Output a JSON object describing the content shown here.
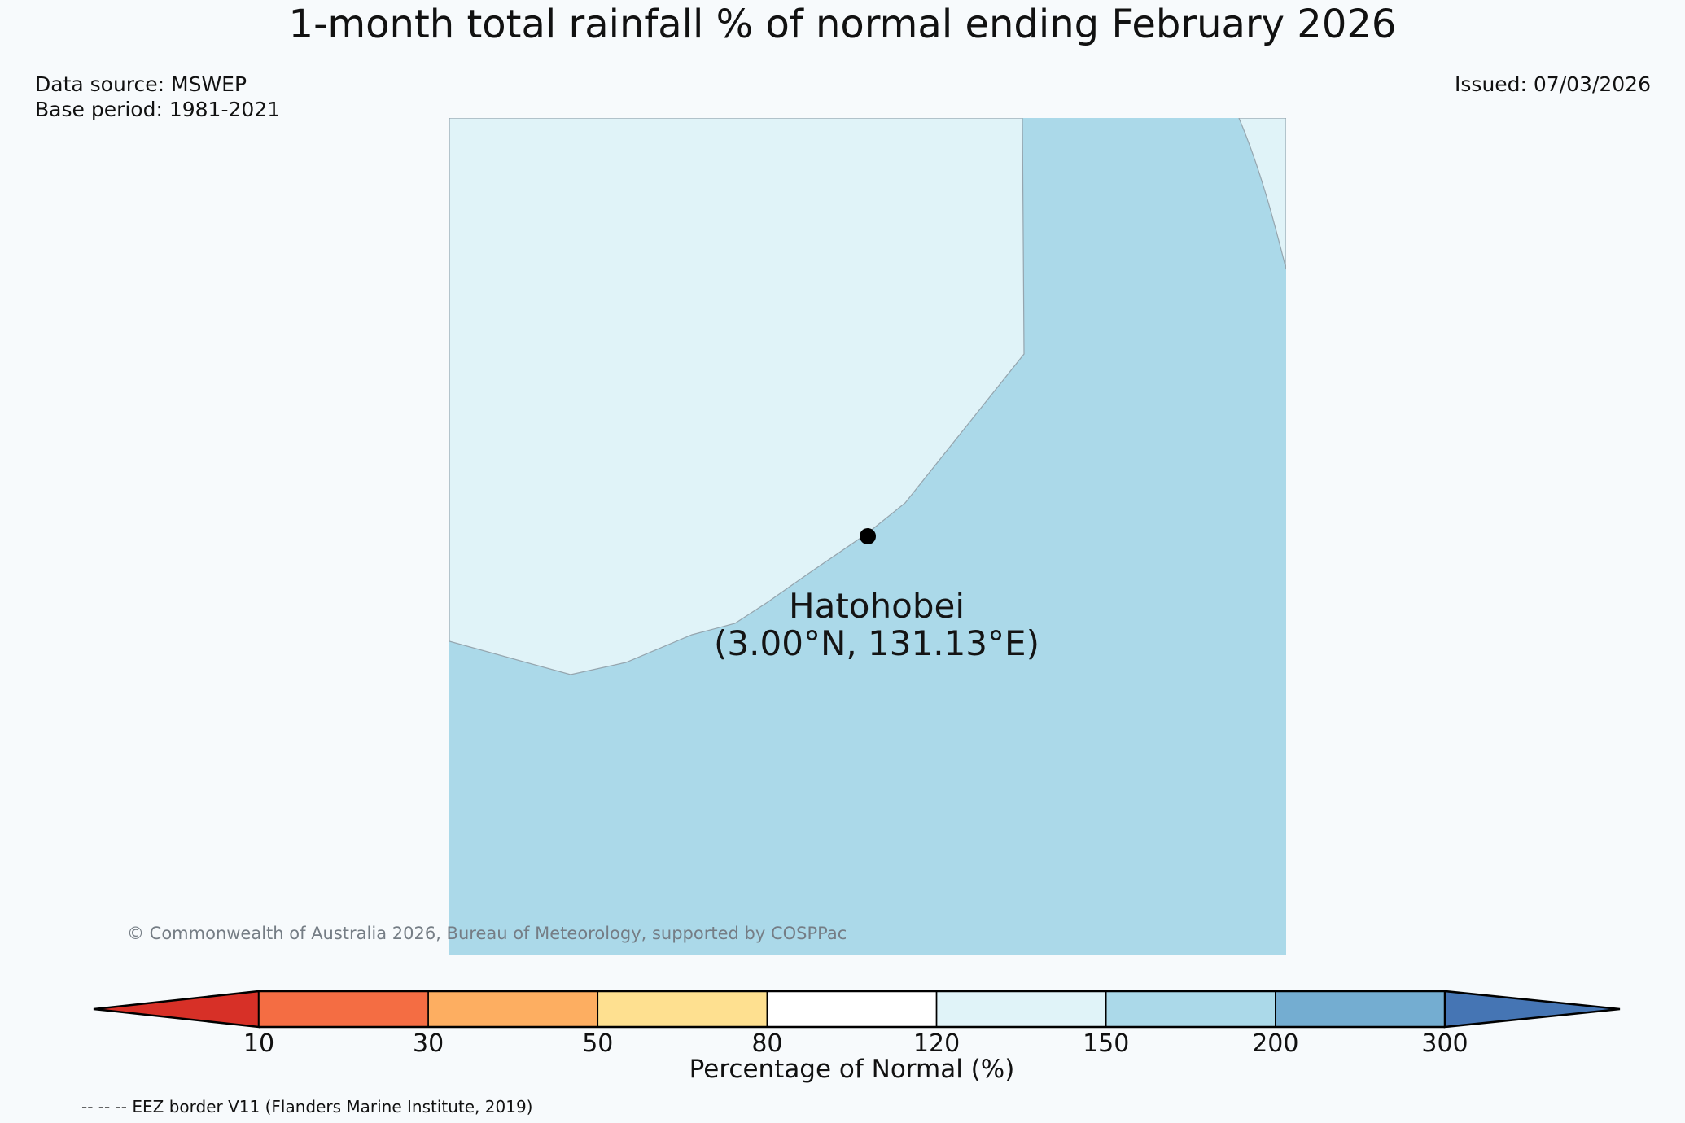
{
  "title": "1-month total rainfall % of normal ending February 2026",
  "meta": {
    "data_source": "Data source: MSWEP",
    "base_period": "Base period: 1981-2021",
    "issued": "Issued: 07/03/2026"
  },
  "map": {
    "station": {
      "name": "Hatohobei",
      "coords": "(3.00°N, 131.13°E)"
    },
    "regions": {
      "upper_left_class": "120-150 % of normal",
      "main_class": "150-200 % of normal"
    },
    "copyright": "© Commonwealth of Australia 2026, Bureau of Meteorology, supported by COSPPac",
    "marker_color": "#000000",
    "boundary_stroke": "#95a5ae"
  },
  "colorbar": {
    "label": "Percentage of Normal (%)",
    "ticks": [
      "10",
      "30",
      "50",
      "80",
      "120",
      "150",
      "200",
      "300"
    ],
    "colors": [
      "#d73027",
      "#f46d43",
      "#fdae61",
      "#fee090",
      "#ffffff",
      "#e0f3f8",
      "#abd9e9",
      "#74add1",
      "#4575b4"
    ],
    "outline_color": "#000000"
  },
  "footnote": {
    "eez": "-- -- -- EEZ border V11 (Flanders Marine Institute, 2019)"
  },
  "page": {
    "background": "#f7fafc"
  }
}
